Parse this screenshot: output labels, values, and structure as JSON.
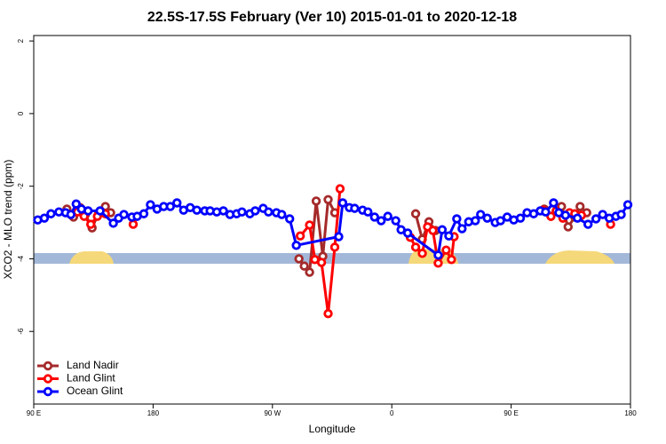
{
  "chart_data": {
    "type": "line",
    "title": "22.5S-17.5S February (Ver 10)   2015-01-01 to 2020-12-18",
    "xlabel": "Longitude",
    "ylabel": "XCO2 - MLO trend (ppm)",
    "xlim": [
      90,
      540
    ],
    "xticks": [
      {
        "value": 90,
        "label": "90 E"
      },
      180,
      {
        "value": 270,
        "label": "90 W"
      },
      {
        "value": 360,
        "label": "0"
      },
      {
        "value": 450,
        "label": "90 E"
      },
      {
        "value": 540,
        "label": "180"
      }
    ],
    "ylim": [
      -8,
      2.15
    ],
    "yticks": [
      -6,
      -4,
      -2,
      0,
      2
    ],
    "legend": "bottom-left",
    "series": [
      {
        "name": "Land Nadir",
        "color": "#a52a2a",
        "x": [
          115,
          120,
          125,
          129,
          134,
          139,
          144,
          148,
          null,
          290,
          294,
          298,
          303,
          308,
          312,
          317,
          null,
          378,
          383,
          388,
          393,
          null,
          475,
          480,
          488,
          493,
          498,
          502,
          507
        ],
        "values": [
          -2.63,
          -2.85,
          -2.59,
          -2.78,
          -3.15,
          -2.73,
          -2.56,
          -2.73,
          null,
          -4.0,
          -4.2,
          -4.37,
          -2.41,
          -3.93,
          -2.37,
          -2.73,
          null,
          -2.76,
          -3.46,
          -2.98,
          -3.22,
          null,
          -2.63,
          -2.83,
          -2.56,
          -3.12,
          -2.85,
          -2.56,
          -2.73
        ]
      },
      {
        "name": "Land Glint",
        "color": "#ff0000",
        "x": [
          118,
          123,
          128,
          133,
          138,
          144,
          null,
          165,
          null,
          291,
          298,
          302,
          307,
          312,
          317,
          321,
          null,
          374,
          378,
          383,
          387,
          391,
          395,
          401,
          405,
          407,
          null,
          474,
          480,
          484,
          489,
          494,
          498,
          503,
          null,
          525
        ],
        "values": [
          -2.78,
          -2.71,
          -2.83,
          -3.05,
          -2.83,
          -2.76,
          null,
          -3.05,
          null,
          -3.37,
          -3.07,
          -4.02,
          -4.1,
          -5.51,
          -3.68,
          -2.07,
          null,
          -3.41,
          -3.68,
          -3.85,
          -3.12,
          -3.22,
          -4.12,
          -3.76,
          -4.02,
          -3.39,
          null,
          -2.66,
          -2.83,
          -2.68,
          -2.88,
          -2.73,
          -2.76,
          -2.8,
          null,
          -3.05
        ]
      },
      {
        "name": "Ocean Glint",
        "color": "#0000ff",
        "x": [
          93,
          98,
          103,
          109,
          114,
          118,
          122,
          126,
          131,
          140,
          150,
          154,
          158,
          164,
          168,
          173,
          178,
          183,
          188,
          193,
          198,
          203,
          208,
          213,
          219,
          223,
          228,
          233,
          238,
          243,
          247,
          253,
          257,
          263,
          267,
          273,
          277,
          283,
          288,
          320,
          323,
          328,
          332,
          338,
          342,
          347,
          352,
          357,
          363,
          367,
          372,
          395,
          398,
          403,
          409,
          413,
          418,
          423,
          427,
          432,
          438,
          442,
          447,
          452,
          457,
          462,
          467,
          472,
          476,
          482,
          486,
          491,
          500,
          508,
          514,
          519,
          524,
          529,
          533,
          538
        ],
        "values": [
          -2.93,
          -2.88,
          -2.76,
          -2.71,
          -2.73,
          -2.78,
          -2.49,
          -2.63,
          -2.68,
          -2.68,
          -3.02,
          -2.88,
          -2.78,
          -2.85,
          -2.83,
          -2.76,
          -2.51,
          -2.63,
          -2.56,
          -2.56,
          -2.46,
          -2.66,
          -2.59,
          -2.66,
          -2.68,
          -2.68,
          -2.71,
          -2.68,
          -2.78,
          -2.76,
          -2.71,
          -2.76,
          -2.68,
          -2.61,
          -2.71,
          -2.73,
          -2.78,
          -2.9,
          -3.63,
          -3.39,
          -2.46,
          -2.59,
          -2.61,
          -2.66,
          -2.71,
          -2.85,
          -2.95,
          -2.83,
          -2.95,
          -3.2,
          -3.29,
          -3.9,
          -3.2,
          -3.37,
          -2.9,
          -3.17,
          -2.98,
          -2.95,
          -2.78,
          -2.88,
          -3.0,
          -2.95,
          -2.85,
          -2.93,
          -2.88,
          -2.73,
          -2.76,
          -2.68,
          -2.71,
          -2.46,
          -2.73,
          -2.8,
          -2.88,
          -3.05,
          -2.9,
          -2.78,
          -2.88,
          -2.83,
          -2.78,
          -2.51
        ]
      }
    ]
  }
}
